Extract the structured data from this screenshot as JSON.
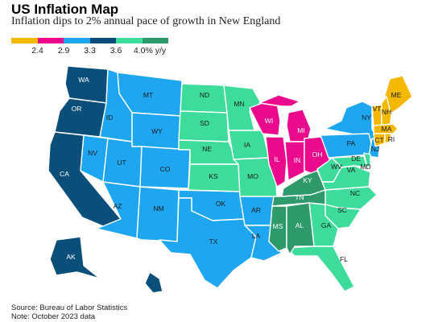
{
  "header": {
    "title": "US Inflation Map",
    "subtitle": "Inflation dips to 2% annual pace of growth in New England"
  },
  "legend": {
    "colors": [
      "#f5b800",
      "#ec0a8c",
      "#1ea7f0",
      "#0a4f7a",
      "#3ddc9a",
      "#2e9a6a"
    ],
    "labels": [
      "2.4",
      "2.9",
      "3.3",
      "3.6",
      "4.0% y/y"
    ]
  },
  "regions": {
    "new_england": {
      "color": "#f5b800",
      "states": [
        "ME",
        "VT",
        "NH",
        "MA",
        "RI",
        "CT"
      ]
    },
    "east_north_central": {
      "color": "#ec0a8c",
      "states": [
        "WI",
        "MI",
        "IL",
        "IN",
        "OH"
      ]
    },
    "middle_atlantic": {
      "color": "#1ea7f0",
      "states": [
        "NY",
        "PA",
        "NJ"
      ]
    },
    "mountain": {
      "color": "#1ea7f0",
      "states": [
        "MT",
        "ID",
        "WY",
        "NV",
        "UT",
        "CO",
        "AZ",
        "NM"
      ]
    },
    "west_south_central": {
      "color": "#1ea7f0",
      "states": [
        "OK",
        "TX",
        "AR",
        "LA"
      ]
    },
    "pacific": {
      "color": "#0a4f7a",
      "states": [
        "WA",
        "OR",
        "CA",
        "AK",
        "HI"
      ]
    },
    "west_north_central": {
      "color": "#3ddc9a",
      "states": [
        "ND",
        "SD",
        "NE",
        "KS",
        "MN",
        "IA",
        "MO"
      ]
    },
    "south_atlantic": {
      "color": "#3ddc9a",
      "states": [
        "WV",
        "VA",
        "NC",
        "SC",
        "GA",
        "FL",
        "DE",
        "MD"
      ]
    },
    "east_south_central": {
      "color": "#2e9a6a",
      "states": [
        "KY",
        "TN",
        "MS",
        "AL"
      ]
    }
  },
  "state_labels": {
    "WA": "WA",
    "OR": "OR",
    "CA": "CA",
    "AK": "AK",
    "ID": "ID",
    "MT": "MT",
    "WY": "WY",
    "NV": "NV",
    "UT": "UT",
    "CO": "CO",
    "AZ": "AZ",
    "NM": "NM",
    "ND": "ND",
    "SD": "SD",
    "NE": "NE",
    "KS": "KS",
    "MN": "MN",
    "IA": "IA",
    "MO": "MO",
    "OK": "OK",
    "TX": "TX",
    "AR": "AR",
    "LA": "LA",
    "WI": "WI",
    "MI": "MI",
    "IL": "IL",
    "IN": "IN",
    "OH": "OH",
    "KY": "KY",
    "TN": "TN",
    "MS": "MS",
    "AL": "AL",
    "GA": "GA",
    "FL": "FL",
    "SC": "SC",
    "NC": "NC",
    "VA": "VA",
    "WV": "WV",
    "DE": "DE",
    "MD": "MD",
    "PA": "PA",
    "NY": "NY",
    "NJ": "NJ",
    "ME": "ME",
    "VT": "VT",
    "NH": "NH",
    "MA": "MA",
    "RI": "RI",
    "CT": "CT"
  },
  "footer": {
    "source": "Source: Bureau of Labor Statistics",
    "note": "Note: October 2023 data"
  }
}
